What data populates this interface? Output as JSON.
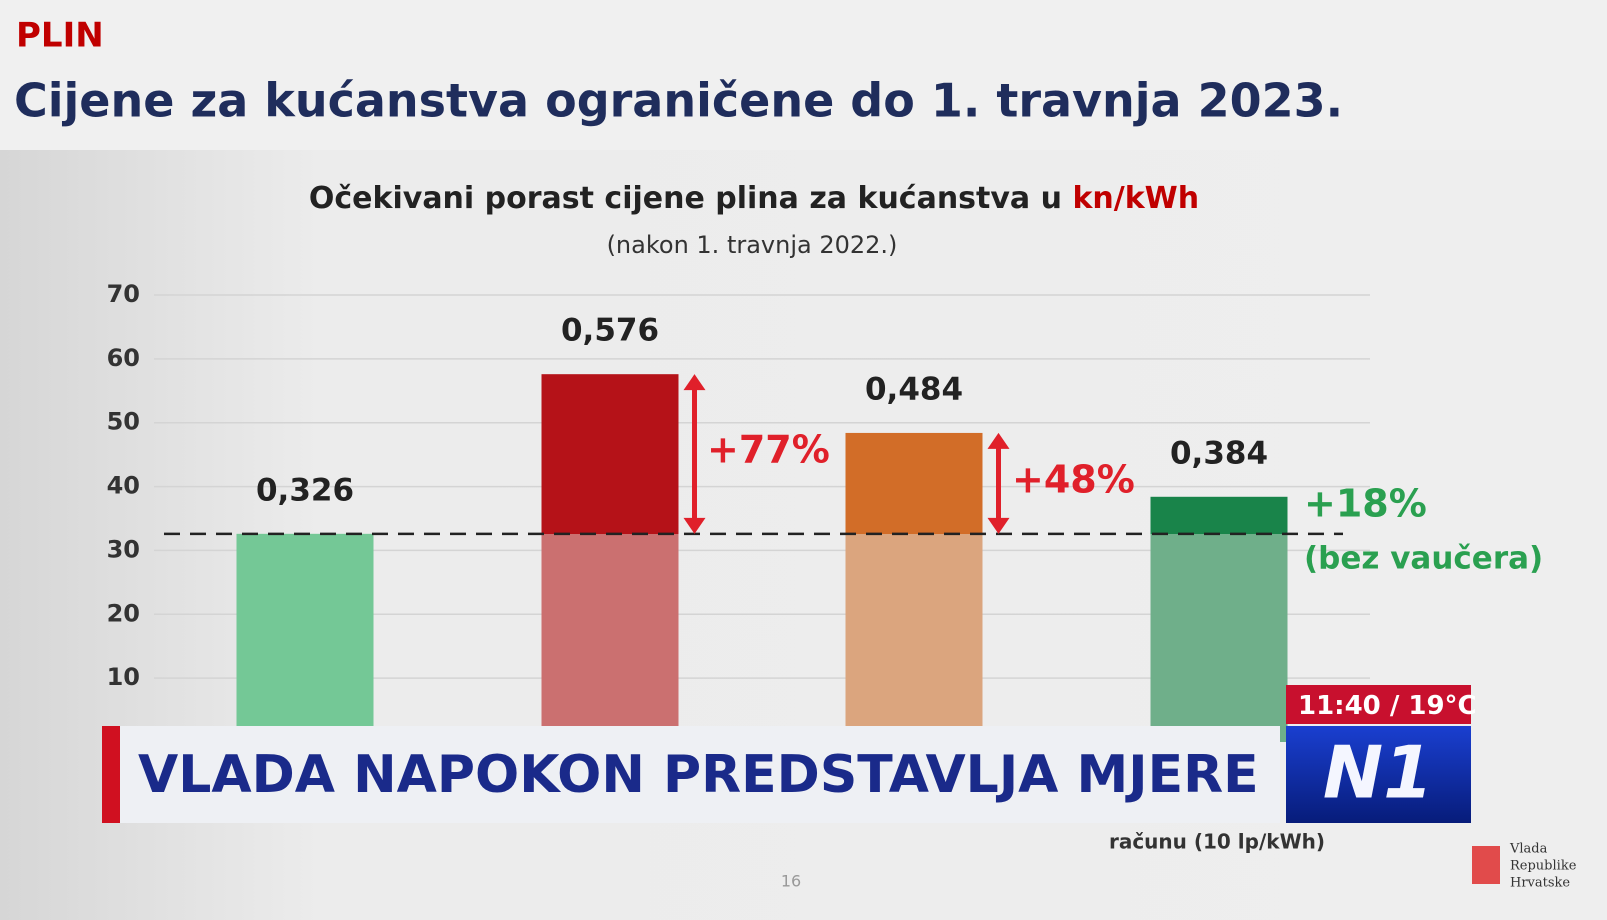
{
  "slide": {
    "section": "PLIN",
    "heading": "Cijene za kućanstva ograničene do 1. travnja 2023.",
    "footnote": "računu (10 lp/kWh)",
    "page": 16,
    "logo": [
      "Vlada",
      "Republike",
      "Hrvatske"
    ]
  },
  "chart_data": {
    "type": "bar",
    "title": "Očekivani porast cijene plina za kućanstva u",
    "title_unit": "kn/kWh",
    "subtitle": "(nakon 1. travnja 2022.)",
    "categories": [
      null,
      null,
      null,
      null
    ],
    "values": [
      32.6,
      57.6,
      48.4,
      38.4
    ],
    "value_labels": [
      "0,326",
      "0,576",
      "0,484",
      "0,384"
    ],
    "colors": [
      "#74c896",
      "#b51218",
      "#d26d28",
      "#19844a"
    ],
    "base_colors": [
      "#74c896",
      "#cb7070",
      "#dba57e",
      "#6faf8a"
    ],
    "annotations": [
      {
        "text": "+77%",
        "color": "#e0202a"
      },
      {
        "text": "+48%",
        "color": "#e0202a"
      },
      {
        "text": "+18%",
        "color": "#2aa050"
      },
      {
        "text": "(bez vaučera)",
        "color": "#2aa050"
      }
    ],
    "ylim": [
      0,
      70
    ],
    "yticks": [
      10,
      20,
      30,
      40,
      50,
      60,
      70
    ],
    "grid": true
  },
  "broadcast": {
    "ticker": "VLADA NAPOKON PREDSTAVLJA MJERE",
    "time": "11:40",
    "temperature": "/ 19°C",
    "channel": "N1"
  }
}
